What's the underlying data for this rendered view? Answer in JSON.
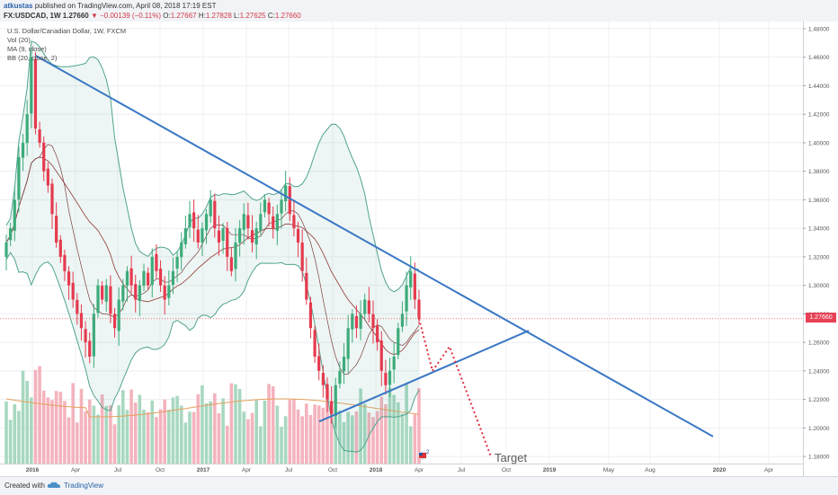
{
  "header": {
    "author": "atkustas",
    "published": "published on TradingView.com, April 08, 2018 17:19 EST",
    "symbol": "FX:USDCAD, 1W",
    "last": "1.27660",
    "change": "▼ −0.00139 (−0.11%)",
    "o_label": "O:",
    "o": "1.27667",
    "h_label": "H:",
    "h": "1.27828",
    "l_label": "L:",
    "l": "1.27625",
    "c_label": "C:",
    "c": "1.27660"
  },
  "legend": {
    "title": "U.S. Dollar/Canadian Dollar, 1W, FXCM",
    "vol": "Vol (20)",
    "ma": "MA (9, close)",
    "bb": "BB (20, close, 2)"
  },
  "price_tag": "1.27660",
  "annotation": "Target",
  "footer": {
    "created": "Created with",
    "brand": "TradingView"
  },
  "colors": {
    "up": "#3dab7a",
    "down": "#e53a4e",
    "trend": "#3a77c4",
    "band": "#51a38f",
    "ma": "#9b4a4a",
    "vol_up": "#a8d8c0",
    "vol_down": "#f4b3bd",
    "vol_ma": "#e5a15a"
  },
  "chart_data": {
    "type": "candlestick",
    "price_axis": [
      "1.48000",
      "1.46000",
      "1.44000",
      "1.42000",
      "1.40000",
      "1.38000",
      "1.36000",
      "1.34000",
      "1.32000",
      "1.30000",
      "1.28000",
      "1.26000",
      "1.24000",
      "1.22000",
      "1.20000",
      "1.18000"
    ],
    "ylim": [
      1.175,
      1.485
    ],
    "time_axis": [
      "2016",
      "Apr",
      "Jul",
      "Oct",
      "2017",
      "Apr",
      "Jul",
      "Oct",
      "2018",
      "Apr",
      "Jul",
      "Oct",
      "2019",
      "May",
      "Aug",
      "2020",
      "Apr"
    ],
    "closes": [
      1.33,
      1.34,
      1.36,
      1.39,
      1.4,
      1.42,
      1.46,
      1.41,
      1.4,
      1.38,
      1.37,
      1.35,
      1.33,
      1.32,
      1.31,
      1.3,
      1.29,
      1.28,
      1.27,
      1.26,
      1.25,
      1.28,
      1.3,
      1.29,
      1.3,
      1.28,
      1.27,
      1.29,
      1.3,
      1.31,
      1.3,
      1.29,
      1.3,
      1.31,
      1.3,
      1.32,
      1.31,
      1.3,
      1.29,
      1.3,
      1.31,
      1.32,
      1.33,
      1.34,
      1.35,
      1.34,
      1.33,
      1.34,
      1.35,
      1.36,
      1.34,
      1.33,
      1.34,
      1.32,
      1.31,
      1.33,
      1.34,
      1.35,
      1.34,
      1.33,
      1.34,
      1.35,
      1.36,
      1.35,
      1.34,
      1.35,
      1.36,
      1.37,
      1.35,
      1.34,
      1.33,
      1.31,
      1.29,
      1.27,
      1.25,
      1.24,
      1.23,
      1.22,
      1.21,
      1.23,
      1.24,
      1.25,
      1.27,
      1.28,
      1.27,
      1.28,
      1.29,
      1.28,
      1.27,
      1.26,
      1.24,
      1.23,
      1.24,
      1.25,
      1.27,
      1.28,
      1.3,
      1.31,
      1.29,
      1.2766
    ],
    "projection": [
      1.2766,
      1.24,
      1.257,
      1.18
    ],
    "upper_trendline": [
      [
        1.46
      ],
      [
        1.265
      ]
    ],
    "lower_trendline": [
      [
        1.205
      ],
      [
        1.268
      ]
    ]
  }
}
